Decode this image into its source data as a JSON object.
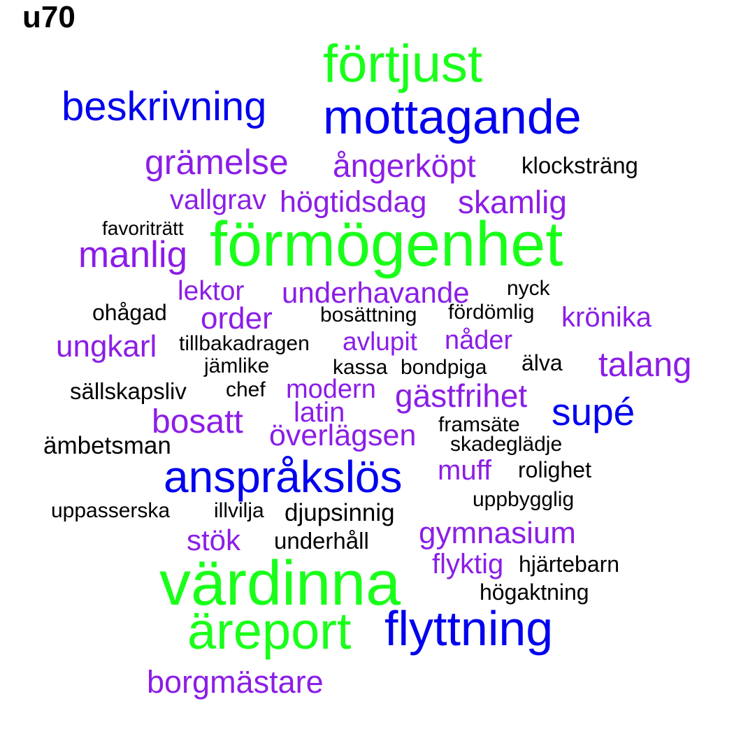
{
  "title": "u70",
  "colors": {
    "green": "#1aff1a",
    "blue": "#0000ee",
    "purple": "#8b1ee6",
    "black": "#000000"
  },
  "words": {
    "fortjust": "förtjust",
    "beskrivning": "beskrivning",
    "mottagande": "mottagande",
    "gramelse": "grämelse",
    "angerkopt": "ångerköpt",
    "klockstrang": "klocksträng",
    "vallgrav": "vallgrav",
    "hogtidsdag": "högtidsdag",
    "skamlig": "skamlig",
    "favoritratt": "favoriträtt",
    "formogenhet": "förmögenhet",
    "manlig": "manlig",
    "lektor": "lektor",
    "underhavande": "underhavande",
    "nyck": "nyck",
    "ohagad": "ohågad",
    "order": "order",
    "bosattning": "bosättning",
    "fordomlig": "fördömlig",
    "kronika": "krönika",
    "ungkarl": "ungkarl",
    "tillbakadragen": "tillbakadragen",
    "avlupit": "avlupit",
    "nader": "nåder",
    "jamlike": "jämlike",
    "kassa": "kassa",
    "bondpiga": "bondpiga",
    "alva": "älva",
    "talang": "talang",
    "sallskapsliv": "sällskapsliv",
    "chef": "chef",
    "modern": "modern",
    "gastfrihet": "gästfrihet",
    "supe": "supé",
    "latin": "latin",
    "bosatt": "bosatt",
    "framsate": "framsäte",
    "overlagsen": "överlägsen",
    "skadegladje": "skadeglädje",
    "ambetsman": "ämbetsman",
    "anspraklos": "anspråkslös",
    "muff": "muff",
    "rolighet": "rolighet",
    "uppbygglig": "uppbygglig",
    "uppasserska": "uppasserska",
    "illvilja": "illvilja",
    "djupsinnig": "djupsinnig",
    "gymnasium": "gymnasium",
    "stok": "stök",
    "underhall": "underhåll",
    "flyktig": "flyktig",
    "hjartebarn": "hjärtebarn",
    "vardinna": "värdinna",
    "hogaktning": "högaktning",
    "areport": "äreport",
    "flyttning": "flyttning",
    "borgmastare": "borgmästare"
  }
}
